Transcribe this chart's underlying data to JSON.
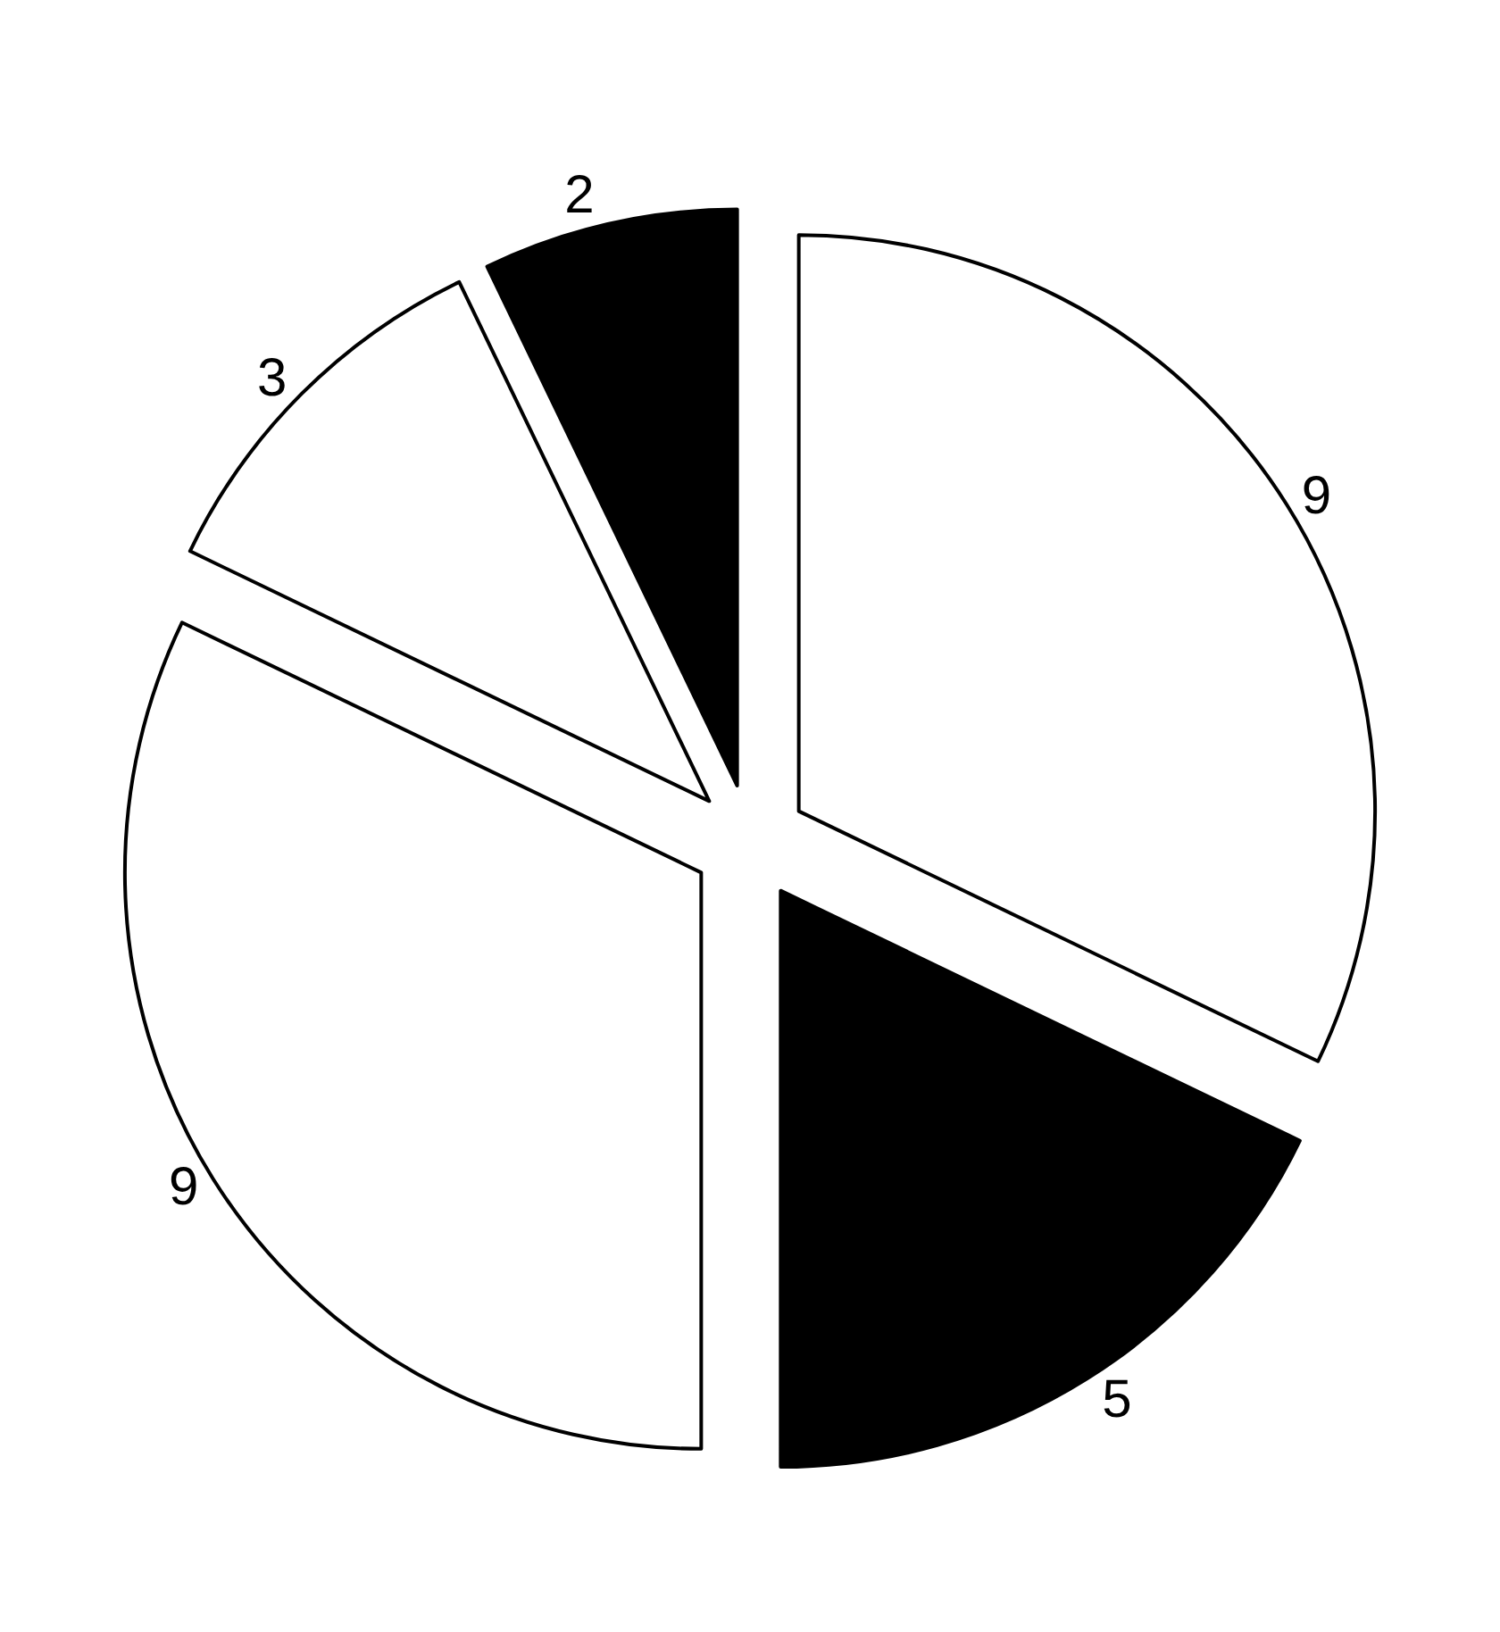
{
  "chart_data": {
    "type": "pie",
    "categories": [
      null,
      null,
      null,
      null,
      null
    ],
    "values": [
      9,
      5,
      9,
      3,
      2
    ],
    "colors": [
      "#ffffff",
      "#000000",
      "#ffffff",
      "#ffffff",
      "#000000"
    ],
    "data_labels": true
  }
}
